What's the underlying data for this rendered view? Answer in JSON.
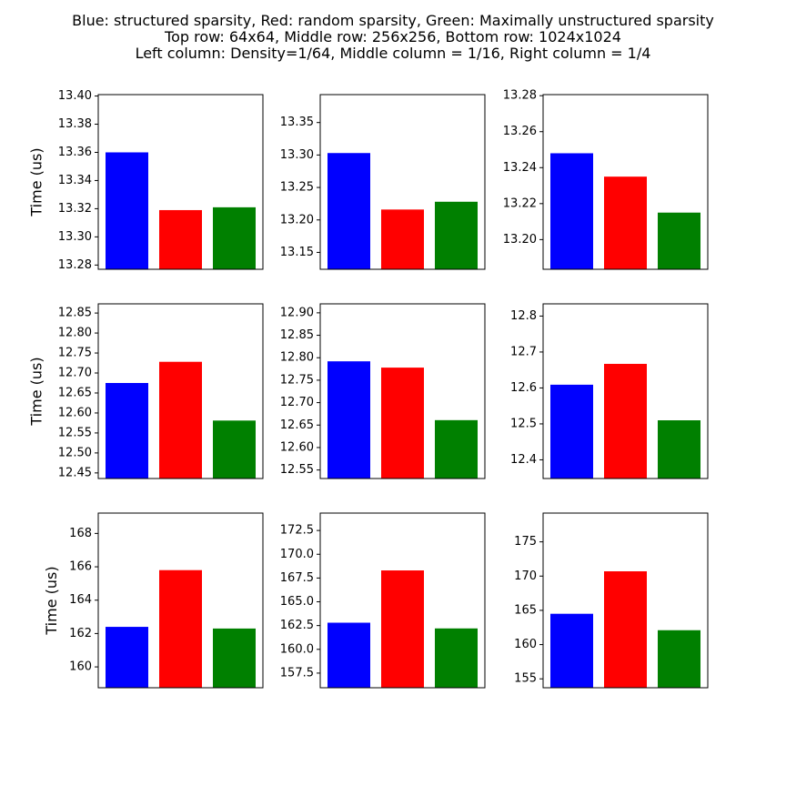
{
  "figure": {
    "title_lines": [
      "Blue: structured sparsity, Red: random sparsity, Green: Maximally unstructured sparsity",
      "Top row: 64x64, Middle row: 256x256, Bottom row: 1024x1024",
      "Left column: Density=1/64, Middle column = 1/16, Right column = 1/4"
    ]
  },
  "colors": {
    "structured": "#0000ff",
    "random": "#ff0000",
    "unstructured": "#008000",
    "axes": "#000000",
    "background": "#ffffff"
  },
  "chart_data": [
    {
      "type": "bar",
      "row": 0,
      "col": 0,
      "ylabel": "Time (us)",
      "categories": [
        "",
        "",
        ""
      ],
      "values": [
        13.36,
        13.319,
        13.321
      ],
      "ylim": [
        13.277,
        13.401
      ],
      "yticks": [
        13.28,
        13.3,
        13.32,
        13.34,
        13.36,
        13.38,
        13.4
      ],
      "ytick_labels": [
        "13.28",
        "13.30",
        "13.32",
        "13.34",
        "13.36",
        "13.38",
        "13.40"
      ],
      "grid": false
    },
    {
      "type": "bar",
      "row": 0,
      "col": 1,
      "ylabel": "",
      "categories": [
        "",
        "",
        ""
      ],
      "values": [
        13.303,
        13.216,
        13.228
      ],
      "ylim": [
        13.124,
        13.393
      ],
      "yticks": [
        13.15,
        13.2,
        13.25,
        13.3,
        13.35
      ],
      "ytick_labels": [
        "13.15",
        "13.20",
        "13.25",
        "13.30",
        "13.35"
      ],
      "grid": false
    },
    {
      "type": "bar",
      "row": 0,
      "col": 2,
      "ylabel": "",
      "categories": [
        "",
        "",
        ""
      ],
      "values": [
        13.248,
        13.235,
        13.215
      ],
      "ylim": [
        13.1835,
        13.2806
      ],
      "yticks": [
        13.2,
        13.22,
        13.24,
        13.26,
        13.28
      ],
      "ytick_labels": [
        "13.20",
        "13.22",
        "13.24",
        "13.26",
        "13.28"
      ],
      "grid": false
    },
    {
      "type": "bar",
      "row": 1,
      "col": 0,
      "ylabel": "Time (us)",
      "categories": [
        "",
        "",
        ""
      ],
      "values": [
        12.675,
        12.728,
        12.581
      ],
      "ylim": [
        12.436,
        12.873
      ],
      "yticks": [
        12.45,
        12.5,
        12.55,
        12.6,
        12.65,
        12.7,
        12.75,
        12.8,
        12.85
      ],
      "ytick_labels": [
        "12.45",
        "12.50",
        "12.55",
        "12.60",
        "12.65",
        "12.70",
        "12.75",
        "12.80",
        "12.85"
      ],
      "grid": false
    },
    {
      "type": "bar",
      "row": 1,
      "col": 1,
      "ylabel": "",
      "categories": [
        "",
        "",
        ""
      ],
      "values": [
        12.792,
        12.778,
        12.661
      ],
      "ylim": [
        12.531,
        12.92
      ],
      "yticks": [
        12.55,
        12.6,
        12.65,
        12.7,
        12.75,
        12.8,
        12.85,
        12.9
      ],
      "ytick_labels": [
        "12.55",
        "12.60",
        "12.65",
        "12.70",
        "12.75",
        "12.80",
        "12.85",
        "12.90"
      ],
      "grid": false
    },
    {
      "type": "bar",
      "row": 1,
      "col": 2,
      "ylabel": "",
      "categories": [
        "",
        "",
        ""
      ],
      "values": [
        12.609,
        12.667,
        12.51
      ],
      "ylim": [
        12.348,
        12.834
      ],
      "yticks": [
        12.4,
        12.5,
        12.6,
        12.7,
        12.8
      ],
      "ytick_labels": [
        "12.4",
        "12.5",
        "12.6",
        "12.7",
        "12.8"
      ],
      "grid": false
    },
    {
      "type": "bar",
      "row": 2,
      "col": 0,
      "ylabel": "Time (us)",
      "categories": [
        "",
        "",
        ""
      ],
      "values": [
        162.4,
        165.8,
        162.3
      ],
      "ylim": [
        158.75,
        169.22
      ],
      "yticks": [
        160,
        162,
        164,
        166,
        168
      ],
      "ytick_labels": [
        "160",
        "162",
        "164",
        "166",
        "168"
      ],
      "grid": false
    },
    {
      "type": "bar",
      "row": 2,
      "col": 1,
      "ylabel": "",
      "categories": [
        "",
        "",
        ""
      ],
      "values": [
        162.8,
        168.3,
        162.2
      ],
      "ylim": [
        155.96,
        174.33
      ],
      "yticks": [
        157.5,
        160.0,
        162.5,
        165.0,
        167.5,
        170.0,
        172.5
      ],
      "ytick_labels": [
        "157.5",
        "160.0",
        "162.5",
        "165.0",
        "167.5",
        "170.0",
        "172.5"
      ],
      "grid": false
    },
    {
      "type": "bar",
      "row": 2,
      "col": 2,
      "ylabel": "",
      "categories": [
        "",
        "",
        ""
      ],
      "values": [
        164.5,
        170.7,
        162.1
      ],
      "ylim": [
        153.7,
        179.2
      ],
      "yticks": [
        155,
        160,
        165,
        170,
        175
      ],
      "ytick_labels": [
        "155",
        "160",
        "165",
        "170",
        "175"
      ],
      "grid": false
    }
  ]
}
